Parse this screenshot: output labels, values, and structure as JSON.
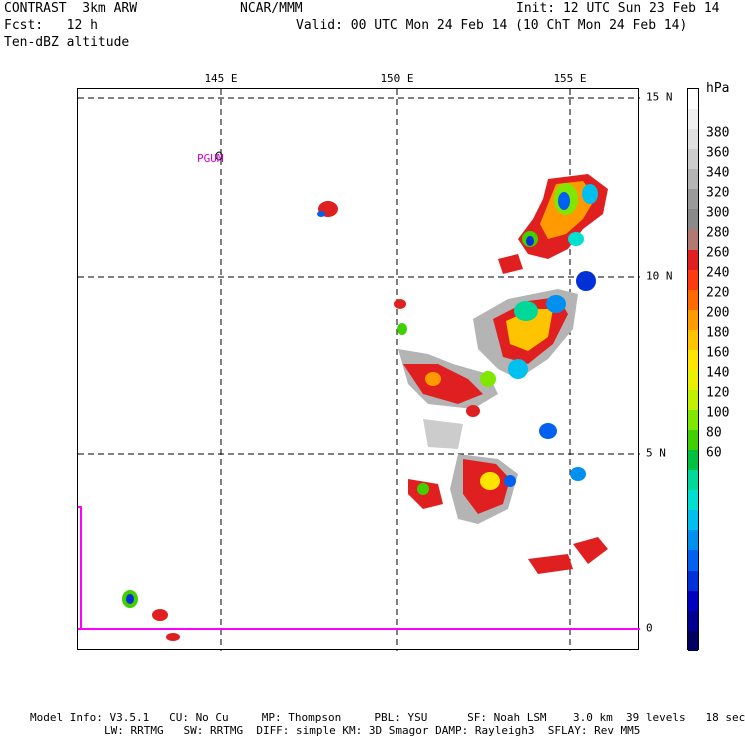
{
  "header": {
    "model": "CONTRAST  3km ARW",
    "org": "NCAR/MMM",
    "init": "Init: 12 UTC Sun 23 Feb 14",
    "fcst": "Fcst:   12 h",
    "valid": "Valid: 00 UTC Mon 24 Feb 14 (10 ChT Mon 24 Feb 14)",
    "field": "Ten-dBZ altitude"
  },
  "map": {
    "lon_labels": [
      "145 E",
      "150 E",
      "155 E"
    ],
    "lat_labels": [
      "15 N",
      "10 N",
      "5 N",
      "0"
    ],
    "station_label": "PGUM",
    "colors": {
      "frame": "#000000",
      "grid": "#000000",
      "equator": "#ff00ff",
      "station": "#cc00cc"
    }
  },
  "colorbar": {
    "unit": "hPa",
    "labels": [
      "380",
      "360",
      "340",
      "320",
      "300",
      "280",
      "260",
      "240",
      "220",
      "200",
      "180",
      "160",
      "140",
      "120",
      "100",
      "80",
      "60"
    ],
    "colors": [
      "#ffffff",
      "#f0f0f0",
      "#e0e0e0",
      "#cccccc",
      "#b4b4b4",
      "#9a9a9a",
      "#8a8a8a",
      "#b07a70",
      "#e02020",
      "#ff3a10",
      "#ff6a00",
      "#ff9a00",
      "#ffc400",
      "#ffe400",
      "#e8f000",
      "#c0f000",
      "#80e800",
      "#40d000",
      "#00c040",
      "#00d89a",
      "#00e0d0",
      "#00c0f0",
      "#0090f0",
      "#0060f0",
      "#0030d8",
      "#0000c0",
      "#000090",
      "#000060"
    ]
  },
  "footer": {
    "line1": "Model Info: V3.5.1   CU: No Cu     MP: Thompson     PBL: YSU      SF: Noah LSM    3.0 km  39 levels   18 sec",
    "line2": "LW: RRTMG   SW: RRTMG  DIFF: simple KM: 3D Smagor DAMP: Rayleigh3  SFLAY: Rev MM5"
  }
}
